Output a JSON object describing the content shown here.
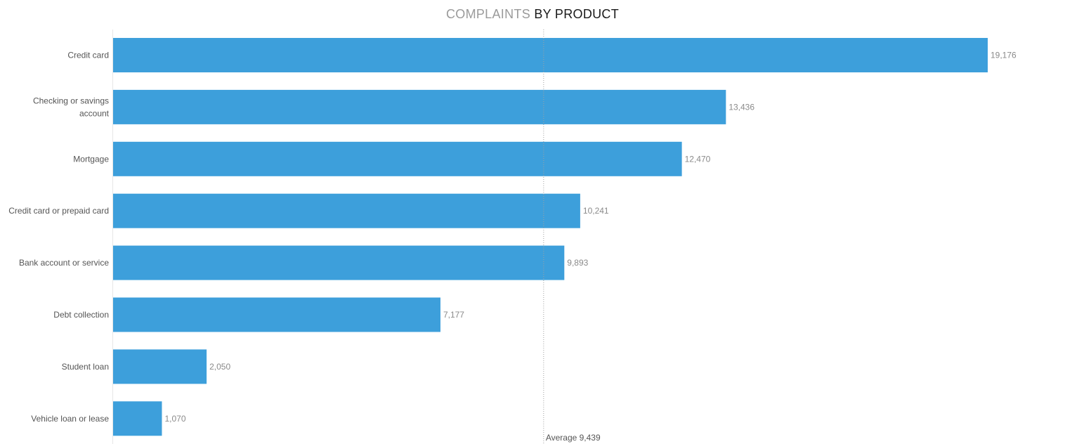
{
  "chart_data": {
    "type": "bar",
    "orientation": "horizontal",
    "title": "COMPLAINTS BY PRODUCT",
    "title_parts": {
      "light": "COMPLAINTS",
      "bold": "BY PRODUCT"
    },
    "categories": [
      [
        "Credit card"
      ],
      [
        "Checking or savings",
        "account"
      ],
      [
        "Mortgage"
      ],
      [
        "Credit card or prepaid card"
      ],
      [
        "Bank account or service"
      ],
      [
        "Debt collection"
      ],
      [
        "Student loan"
      ],
      [
        "Vehicle loan or lease"
      ]
    ],
    "values": [
      19176,
      13436,
      12470,
      10241,
      9893,
      7177,
      2050,
      1070
    ],
    "value_labels": [
      "19,176",
      "13,436",
      "12,470",
      "10,241",
      "9,893",
      "7,177",
      "2,050",
      "1,070"
    ],
    "reference_line": {
      "label": "Average",
      "value": 9439,
      "value_label": "9,439"
    },
    "xlim": [
      0,
      19176
    ],
    "grid": false,
    "legend": "none",
    "bar_color": "#3d9fdb"
  }
}
